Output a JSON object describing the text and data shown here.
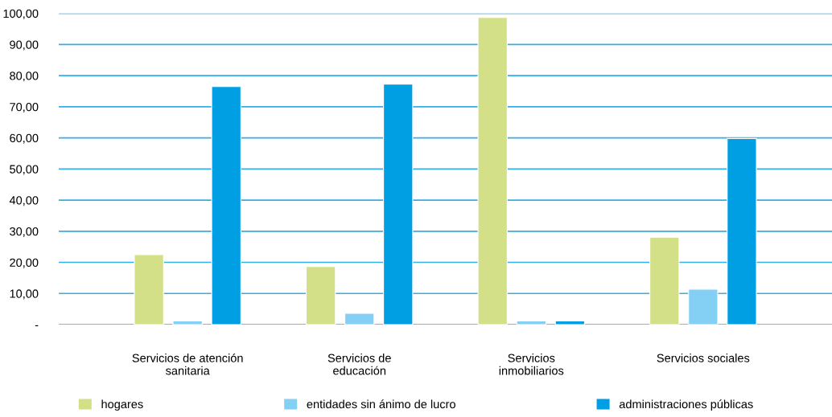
{
  "chart_data": {
    "type": "bar",
    "categories": [
      "Servicios de atención\nsanitaria",
      "Servicios de\neducación",
      "Servicios\ninmobiliarios",
      "Servicios sociales"
    ],
    "series": [
      {
        "name": "hogares",
        "color": "#d4e087",
        "values": [
          22.5,
          18.7,
          98.7,
          28.1
        ]
      },
      {
        "name": "entidades sin ánimo de lucro",
        "color": "#84cff4",
        "values": [
          1.2,
          3.6,
          1.2,
          11.4
        ]
      },
      {
        "name": "administraciones públicas",
        "color": "#009fe3",
        "values": [
          76.5,
          77.3,
          1.2,
          59.8
        ]
      }
    ],
    "ylim": [
      0,
      100
    ],
    "yticks": [
      {
        "value": 0,
        "label": "-"
      },
      {
        "value": 10,
        "label": "10,00"
      },
      {
        "value": 20,
        "label": "20,00"
      },
      {
        "value": 30,
        "label": "30,00"
      },
      {
        "value": 40,
        "label": "40,00"
      },
      {
        "value": 50,
        "label": "50,00"
      },
      {
        "value": 60,
        "label": "60,00"
      },
      {
        "value": 70,
        "label": "70,00"
      },
      {
        "value": 80,
        "label": "80,00"
      },
      {
        "value": 90,
        "label": "90,00"
      },
      {
        "value": 100,
        "label": "100,00"
      }
    ],
    "grid": "y",
    "legend": "bottom"
  }
}
